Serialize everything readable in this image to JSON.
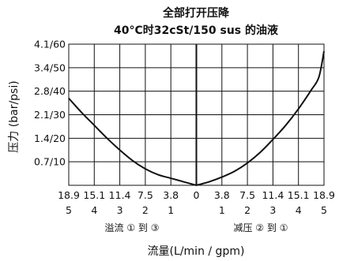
{
  "chart_data": {
    "type": "line",
    "title": "全部打开压降",
    "subtitle": "40°C时32cSt/150 sus 的油液",
    "ylabel": "压力 (bar/psi)",
    "xlabel": "流量(L/min / gpm)",
    "yticks": [
      "4.1/60",
      "3.4/50",
      "2.8/40",
      "2.1/30",
      "1.4/20",
      "0.7/10"
    ],
    "ytick_values": [
      60,
      50,
      40,
      30,
      20,
      10
    ],
    "ylim": [
      0,
      60
    ],
    "xticks_lpm": [
      "18.9",
      "15.1",
      "11.4",
      "7.5",
      "3.8",
      "0",
      "3.8",
      "7.5",
      "11.4",
      "15.1",
      "18.9"
    ],
    "xticks_gpm": [
      "5",
      "4",
      "3",
      "2",
      "1",
      "",
      "1",
      "2",
      "3",
      "4",
      "5"
    ],
    "xtick_values": [
      -5,
      -4,
      -3,
      -2,
      -1,
      0,
      1,
      2,
      3,
      4,
      5
    ],
    "xlim": [
      -5,
      5
    ],
    "direction_left": "溢流 ① 到 ③",
    "direction_right": "减压 ② 到 ①",
    "grid": true,
    "series": [
      {
        "direction": "left",
        "x": [
          -5,
          -4.5,
          -4,
          -3.5,
          -3,
          -2.5,
          -2,
          -1.5,
          -1,
          -0.5,
          0
        ],
        "y": [
          37,
          31,
          25.5,
          20,
          15,
          10.5,
          7,
          4.5,
          3,
          1.5,
          0
        ]
      },
      {
        "direction": "right",
        "x": [
          0,
          0.5,
          1,
          1.5,
          2,
          2.5,
          3,
          3.5,
          4,
          4.5,
          4.8,
          5
        ],
        "y": [
          0,
          1.5,
          3.5,
          6,
          9.5,
          14,
          19.5,
          25.5,
          32.5,
          40.5,
          46,
          57
        ]
      }
    ],
    "colors": {
      "line": "#111111",
      "grid": "#111111",
      "background": "#ffffff"
    }
  }
}
